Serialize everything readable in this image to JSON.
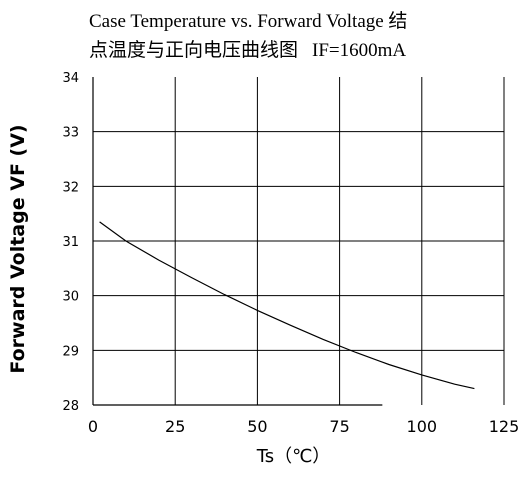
{
  "chart_data": {
    "type": "line",
    "title": "Case Temperature vs. Forward Voltage 结点温度与正向电压曲线图",
    "subtitle": "IF=1600mA",
    "xlabel": "Ts（℃）",
    "ylabel": "Forward Voltage VF (V)",
    "xlim": [
      0,
      125
    ],
    "ylim": [
      28,
      34
    ],
    "xticks": [
      0,
      25,
      50,
      75,
      100,
      125
    ],
    "yticks": [
      28,
      29,
      30,
      31,
      32,
      33,
      34
    ],
    "grid": true,
    "x": [
      2,
      10,
      20,
      30,
      40,
      50,
      60,
      70,
      80,
      90,
      100,
      110,
      116
    ],
    "values": [
      31.35,
      31.0,
      30.65,
      30.33,
      30.02,
      29.73,
      29.46,
      29.2,
      28.96,
      28.74,
      28.55,
      28.38,
      28.3
    ]
  }
}
